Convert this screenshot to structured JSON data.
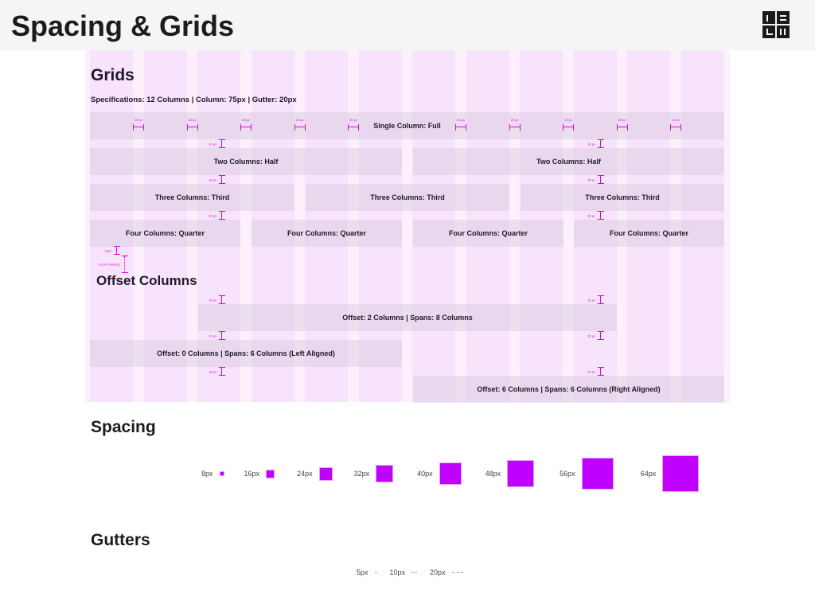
{
  "header": {
    "title": "Spacing & Grids",
    "logo": "DSGN"
  },
  "grids": {
    "title": "Grids",
    "spec": "Specifications: 12 Columns | Column: 75px | Gutter: 20px",
    "rows": {
      "single": "Single Column: Full",
      "two": [
        "Two Columns: Half",
        "Two Columns: Half"
      ],
      "three": [
        "Three Columns: Third",
        "Three Columns: Third",
        "Three Columns: Third"
      ],
      "four": [
        "Four Columns: Quarter",
        "Four Columns: Quarter",
        "Four Columns: Quarter",
        "Four Columns: Quarter"
      ]
    },
    "gutter_label": "20 px",
    "row_gap_label": "16 px",
    "heading_gap_label": "16px",
    "padding_label": "32 px Padding",
    "offset_title": "Offset Columns",
    "offsets": [
      "Offset: 2 Columns | Spans: 8 Columns",
      "Offset: 0 Columns | Spans: 6 Columns (Left Aligned)",
      "Offset: 6 Columns | Spans: 6 Columns (Right Aligned)"
    ]
  },
  "spacing": {
    "title": "Spacing",
    "items": [
      "8px",
      "16px",
      "24px",
      "32px",
      "40px",
      "48px",
      "56px",
      "64px"
    ],
    "color": "#c000ff"
  },
  "gutters": {
    "title": "Gutters",
    "items": [
      "5px",
      "10px",
      "20px"
    ]
  }
}
